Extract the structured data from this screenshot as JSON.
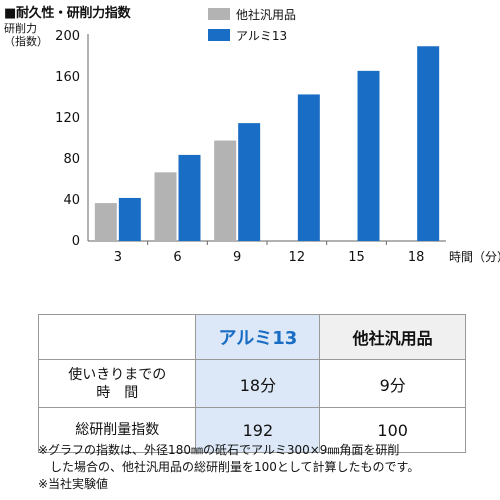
{
  "heading": "■耐久性・研削力指数",
  "chart_data": {
    "type": "bar",
    "ylabel_lines": [
      "研削力",
      "（指数）"
    ],
    "xlabel": "時間（分）",
    "categories": [
      "3",
      "6",
      "9",
      "12",
      "15",
      "18"
    ],
    "yticks": [
      "0",
      "40",
      "80",
      "120",
      "160",
      "200"
    ],
    "ylim": [
      0,
      200
    ],
    "grid": false,
    "legend_position": "top",
    "series": [
      {
        "name": "他社汎用品",
        "color": "#b3b3b3",
        "values": [
          37,
          67,
          98,
          null,
          null,
          null
        ]
      },
      {
        "name": "アルミ13",
        "color": "#1a6dc4",
        "values": [
          42,
          84,
          115,
          143,
          166,
          190
        ]
      }
    ]
  },
  "table": {
    "header": [
      "",
      "アルミ13",
      "他社汎用品"
    ],
    "rows": [
      {
        "label_lines": [
          "使いきりまでの",
          "時　間"
        ],
        "values": [
          "18分",
          "9分"
        ]
      },
      {
        "label_lines": [
          "総研削量指数"
        ],
        "values": [
          "192",
          "100"
        ]
      }
    ]
  },
  "notes": [
    "※グラフの指数は、外径180㎜の砥石でアルミ300×9㎜角面を研削",
    "した場合の、他社汎用品の総研削量を100として計算したものです。",
    "※当社実験値"
  ]
}
